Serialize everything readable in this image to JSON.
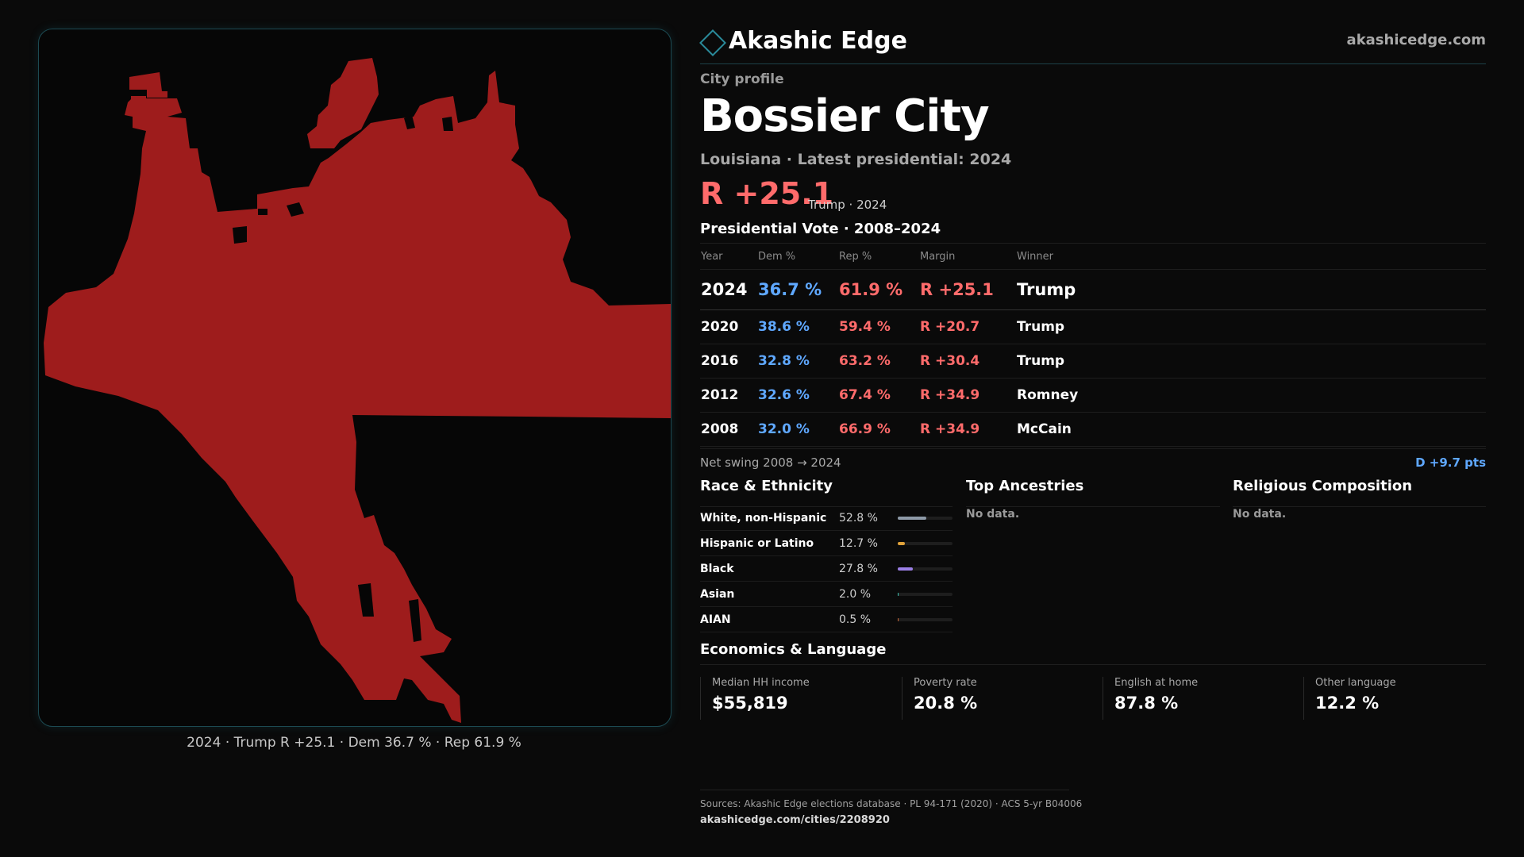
{
  "map": {
    "caption": "2024 · Trump R +25.1 · Dem 36.7 % · Rep 61.9 %",
    "fill_color": "#9e1c1c"
  },
  "brand": {
    "name": "Akashic Edge",
    "url": "akashicedge.com",
    "icon": "diamond-icon"
  },
  "profile": {
    "eyebrow": "City profile",
    "city": "Bossier City",
    "subtitle": "Louisiana · Latest presidential: 2024",
    "margin": "R +25.1",
    "margin_sub": "Trump · 2024"
  },
  "vote": {
    "title": "Presidential Vote · 2008–2024",
    "headers": [
      "Year",
      "Dem %",
      "Rep %",
      "Margin",
      "Winner"
    ],
    "rows": [
      {
        "year": "2024",
        "dem": "36.7 %",
        "rep": "61.9 %",
        "margin": "R +25.1",
        "winner": "Trump"
      },
      {
        "year": "2020",
        "dem": "38.6 %",
        "rep": "59.4 %",
        "margin": "R +20.7",
        "winner": "Trump"
      },
      {
        "year": "2016",
        "dem": "32.8 %",
        "rep": "63.2 %",
        "margin": "R +30.4",
        "winner": "Trump"
      },
      {
        "year": "2012",
        "dem": "32.6 %",
        "rep": "67.4 %",
        "margin": "R +34.9",
        "winner": "Romney"
      },
      {
        "year": "2008",
        "dem": "32.0 %",
        "rep": "66.9 %",
        "margin": "R +34.9",
        "winner": "McCain"
      }
    ],
    "swing_label": "Net swing 2008 → 2024",
    "swing_value": "D +9.7 pts"
  },
  "race": {
    "title": "Race & Ethnicity",
    "rows": [
      {
        "label": "White, non-Hispanic",
        "value": "52.8 %",
        "pct": 52.8,
        "color": "#8e9aa8"
      },
      {
        "label": "Hispanic or Latino",
        "value": "12.7 %",
        "pct": 12.7,
        "color": "#e0a23a"
      },
      {
        "label": "Black",
        "value": "27.8 %",
        "pct": 27.8,
        "color": "#9b7fe6"
      },
      {
        "label": "Asian",
        "value": "2.0 %",
        "pct": 2.0,
        "color": "#3ec5b5"
      },
      {
        "label": "AIAN",
        "value": "0.5 %",
        "pct": 0.5,
        "color": "#d06a3a"
      }
    ]
  },
  "ancestry": {
    "title": "Top Ancestries",
    "empty": "No data."
  },
  "religion": {
    "title": "Religious Composition",
    "empty": "No data."
  },
  "econ": {
    "title": "Economics & Language",
    "stats": [
      {
        "label": "Median HH income",
        "value": "$55,819"
      },
      {
        "label": "Poverty rate",
        "value": "20.8 %"
      },
      {
        "label": "English at home",
        "value": "87.8 %"
      },
      {
        "label": "Other language",
        "value": "12.2 %"
      }
    ]
  },
  "footer": {
    "sources": "Sources: Akashic Edge elections database · PL 94-171 (2020) · ACS 5-yr B04006",
    "url": "akashicedge.com/cities/2208920"
  }
}
